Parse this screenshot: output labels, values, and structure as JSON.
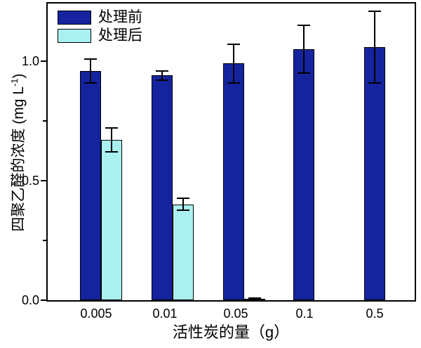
{
  "chart_data": {
    "type": "bar",
    "title": "",
    "categories": [
      "0.005",
      "0.01",
      "0.05",
      "0.1",
      "0.5"
    ],
    "series": [
      {
        "name": "处理前",
        "color": "#15249e",
        "values": [
          0.96,
          0.94,
          0.99,
          1.05,
          1.06
        ],
        "errors": [
          0.05,
          0.02,
          0.08,
          0.1,
          0.15
        ]
      },
      {
        "name": "处理后",
        "color": "#aaf0f0",
        "values": [
          0.67,
          0.4,
          0.005,
          0,
          0
        ],
        "errors": [
          0.05,
          0.025,
          0.005,
          0,
          0
        ]
      }
    ],
    "xlabel": "活性炭的量（g）",
    "ylabel": "四聚乙醛的浓度 (mg L⁻¹)",
    "ylabel_parts": {
      "base": "四聚乙醛的浓度 (mg L",
      "sup": "-1",
      "end": ")"
    },
    "ylim": [
      0,
      1.25
    ],
    "yticks": [
      0.0,
      0.5,
      1.0
    ],
    "ytick_labels": [
      "0.0",
      "0.5",
      "1.0"
    ],
    "yticks_minor": [
      0.25,
      0.75
    ],
    "grid": false,
    "legend_position": "top-left",
    "bar_edge_color": "#000000",
    "axis_color": "#000000",
    "background_color": "#ffffff"
  }
}
